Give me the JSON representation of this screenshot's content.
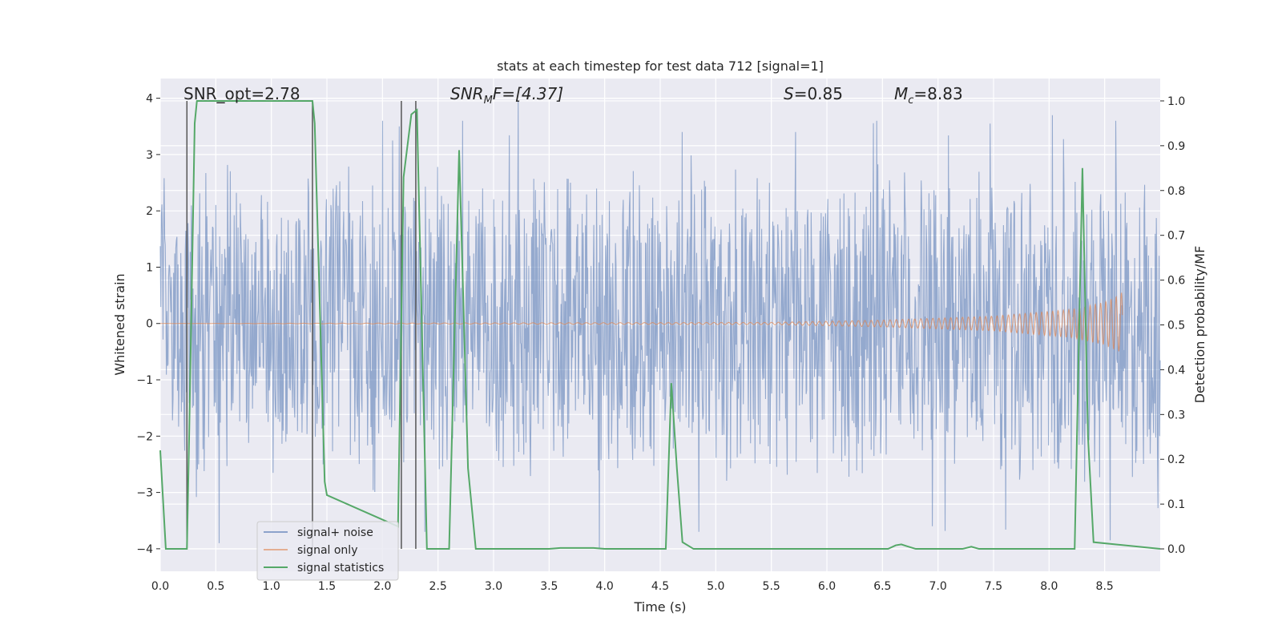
{
  "chart_data": {
    "type": "line",
    "title": "stats at each timestep for test data 712 [signal=1]",
    "xlabel": "Time (s)",
    "ylabel_left": "Whitened strain",
    "ylabel_right": "Detection probability/MF",
    "xlim": [
      0.0,
      9.0
    ],
    "ylim_left": [
      -4.4,
      4.35
    ],
    "ylim_right": [
      -0.05,
      1.05
    ],
    "x_ticks": [
      0.0,
      0.5,
      1.0,
      1.5,
      2.0,
      2.5,
      3.0,
      3.5,
      4.0,
      4.5,
      5.0,
      5.5,
      6.0,
      6.5,
      7.0,
      7.5,
      8.0,
      8.5
    ],
    "x_tick_labels": [
      "0.0",
      "0.5",
      "1.0",
      "1.5",
      "2.0",
      "2.5",
      "3.0",
      "3.5",
      "4.0",
      "4.5",
      "5.0",
      "5.5",
      "6.0",
      "6.5",
      "7.0",
      "7.5",
      "8.0",
      "8.5"
    ],
    "y_left_ticks": [
      -4,
      -3,
      -2,
      -1,
      0,
      1,
      2,
      3,
      4
    ],
    "y_left_tick_labels": [
      "−4",
      "−3",
      "−2",
      "−1",
      "0",
      "1",
      "2",
      "3",
      "4"
    ],
    "y_right_ticks": [
      0.0,
      0.1,
      0.2,
      0.3,
      0.4,
      0.5,
      0.6,
      0.7,
      0.8,
      0.9,
      1.0
    ],
    "y_right_tick_labels": [
      "0.0",
      "0.1",
      "0.2",
      "0.3",
      "0.4",
      "0.5",
      "0.6",
      "0.7",
      "0.8",
      "0.9",
      "1.0"
    ],
    "annotations": {
      "snr_opt": "SNR_opt=2.78",
      "snr_mf_main": "SNR",
      "snr_mf_sub": "M",
      "snr_mf_rest": "F=[4.37]",
      "s_main": "S",
      "s_rest": "=0.85",
      "mc_main": "M",
      "mc_sub": "c",
      "mc_rest": "=8.83"
    },
    "series": [
      {
        "name": "signal+ noise",
        "axis": "left",
        "color": "#4c72b0",
        "opacity": 0.5,
        "style": "dense noise, amplitude ~±2.5 with peaks near ±3.9",
        "peaks_up": [
          [
            2.0,
            3.6
          ],
          [
            2.15,
            3.5
          ],
          [
            3.22,
            3.95
          ],
          [
            2.72,
            3.6
          ],
          [
            4.7,
            3.4
          ],
          [
            6.45,
            3.6
          ],
          [
            8.03,
            3.7
          ],
          [
            8.6,
            3.6
          ],
          [
            5.72,
            3.4
          ],
          [
            7.47,
            3.55
          ]
        ],
        "peaks_down": [
          [
            3.95,
            -4.0
          ],
          [
            0.53,
            -3.9
          ],
          [
            8.55,
            -3.85
          ],
          [
            4.85,
            -3.7
          ],
          [
            6.95,
            -3.6
          ],
          [
            2.38,
            -3.7
          ]
        ]
      },
      {
        "name": "signal only",
        "axis": "left",
        "color": "#dd8452",
        "envelope": [
          [
            0.0,
            0.0
          ],
          [
            5.5,
            0.02
          ],
          [
            6.5,
            0.06
          ],
          [
            7.5,
            0.13
          ],
          [
            8.2,
            0.25
          ],
          [
            8.5,
            0.38
          ],
          [
            8.63,
            0.5
          ],
          [
            8.65,
            0.55
          ]
        ],
        "end_x": 8.66
      },
      {
        "name": "signal statistics",
        "axis": "right",
        "color": "#55a868",
        "x": [
          0.0,
          0.05,
          0.24,
          0.26,
          0.31,
          0.33,
          1.37,
          1.39,
          1.48,
          1.5,
          2.14,
          2.19,
          2.26,
          2.31,
          2.4,
          2.52,
          2.6,
          2.69,
          2.77,
          2.84,
          3.5,
          3.6,
          3.9,
          4.0,
          4.55,
          4.6,
          4.65,
          4.7,
          4.8,
          6.55,
          6.62,
          6.67,
          6.72,
          6.8,
          7.22,
          7.3,
          7.37,
          8.23,
          8.3,
          8.35,
          8.4,
          9.0
        ],
        "y": [
          0.22,
          0.0,
          0.0,
          0.25,
          0.95,
          1.0,
          1.0,
          0.95,
          0.15,
          0.12,
          0.05,
          0.83,
          0.97,
          0.98,
          0.0,
          0.0,
          0.0,
          0.89,
          0.18,
          0.0,
          0.0,
          0.002,
          0.002,
          0.0,
          0.0,
          0.37,
          0.18,
          0.015,
          0.0,
          0.0,
          0.008,
          0.01,
          0.006,
          0.0,
          0.0,
          0.005,
          0.0,
          0.0,
          0.85,
          0.25,
          0.015,
          0.0
        ]
      }
    ],
    "vlines": {
      "color": "#555555",
      "x": [
        0.24,
        1.37,
        2.17,
        2.3
      ]
    },
    "legend": {
      "position": "lower-left",
      "entries": [
        {
          "label": "signal+ noise",
          "color": "#4c72b0"
        },
        {
          "label": "signal only",
          "color": "#dd8452"
        },
        {
          "label": "signal statistics",
          "color": "#55a868"
        }
      ]
    },
    "grid": true,
    "background": "#eaeaf2"
  }
}
